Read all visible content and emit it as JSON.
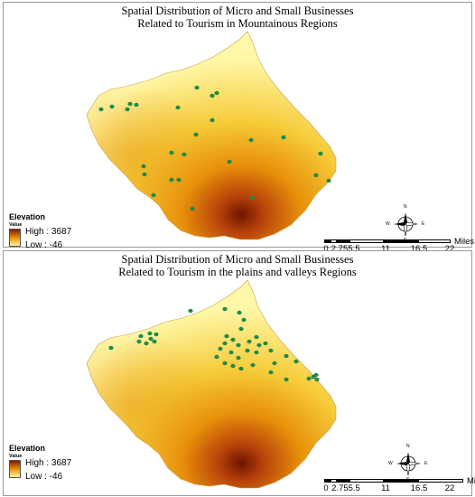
{
  "panels": [
    {
      "title_line1": "Spatial Distribution of Micro and Small Businesses",
      "title_line2": "Related to Tourism in Mountainous Regions",
      "legend": {
        "title": "Elevation",
        "value_label": "Value",
        "high": "High : 3687",
        "low": "Low : -46"
      },
      "scale": {
        "ticks": [
          "0",
          "2.75",
          "5.5",
          "11",
          "16.5",
          "22"
        ],
        "unit": "Miles"
      },
      "compass": {
        "n": "N",
        "s": "S",
        "e": "E",
        "w": "W"
      }
    },
    {
      "title_line1": "Spatial Distribution of Micro and Small Businesses",
      "title_line2": "Related to Tourism in the plains and valleys Regions",
      "legend": {
        "title": "Elevation",
        "value_label": "Value",
        "high": "High : 3687",
        "low": "Low : -46"
      },
      "scale": {
        "ticks": [
          "0",
          "2.755.5",
          "11",
          "16.5",
          "22"
        ],
        "unit": "Miles"
      },
      "compass": {
        "n": "N",
        "s": "S",
        "e": "E",
        "w": "W"
      }
    }
  ],
  "colors": {
    "high": "#7a1a00",
    "mid": "#e8900a",
    "low": "#fff8a0",
    "point": "#1e8a4a"
  }
}
